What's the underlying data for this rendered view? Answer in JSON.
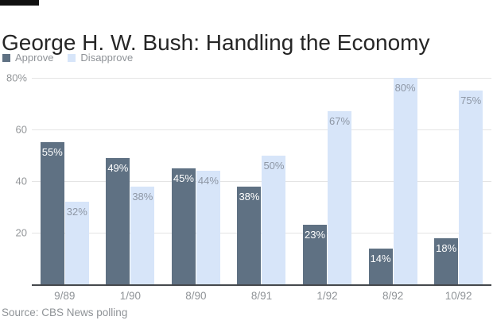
{
  "brand_bar": {
    "color": "#111111"
  },
  "header": {
    "title": "George H. W. Bush: Handling the Economy"
  },
  "source": "Source: CBS News polling",
  "chart_data": {
    "type": "bar",
    "title": "George H. W. Bush: Handling the Economy",
    "categories": [
      "9/89",
      "1/90",
      "8/90",
      "8/91",
      "1/92",
      "8/92",
      "10/92"
    ],
    "series": [
      {
        "name": "Approve",
        "color": "#5f7183",
        "label_color": "#ffffff",
        "values": [
          55,
          49,
          45,
          38,
          23,
          14,
          18
        ]
      },
      {
        "name": "Disapprove",
        "color": "#d7e5f9",
        "label_color": "#8e97a5",
        "values": [
          32,
          38,
          44,
          50,
          67,
          80,
          75
        ]
      }
    ],
    "value_label_suffix": "%",
    "xlabel": "",
    "ylabel": "",
    "ylim": [
      0,
      80
    ],
    "y_ticks": [
      {
        "label": "80%",
        "value": 80
      },
      {
        "label": "60",
        "value": 60
      },
      {
        "label": "40",
        "value": 40
      },
      {
        "label": "20",
        "value": 20
      }
    ],
    "grid": true,
    "gridline_color": "#e4e4e4",
    "axis_line_color": "#45484c",
    "legend_position": "top-left",
    "legend": [
      "Approve",
      "Disapprove"
    ]
  }
}
